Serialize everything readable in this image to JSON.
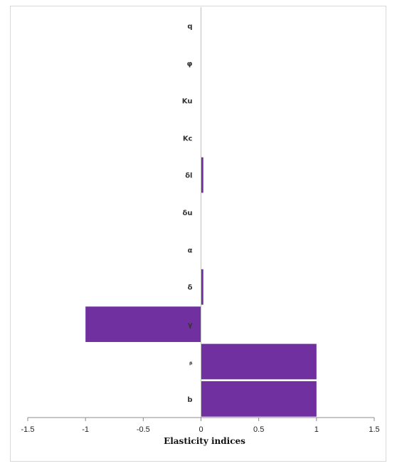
{
  "chart_data": {
    "type": "bar",
    "orientation": "horizontal",
    "categories": [
      "q",
      "φ",
      "Ku",
      "Kc",
      "δl",
      "δu",
      "α",
      "δ",
      "γ",
      "ᵦ",
      "b"
    ],
    "values": [
      0,
      0,
      0,
      0,
      0.02,
      0,
      0,
      0.02,
      -1,
      1,
      1
    ],
    "xlim": [
      -1.5,
      1.5
    ],
    "xticks": [
      -1.5,
      -1,
      -0.5,
      0,
      0.5,
      1,
      1.5
    ],
    "xlabel": "Elasticity indices",
    "ylabel": "",
    "title": "",
    "grid": false,
    "legend": "none",
    "bar_color": "#7030a0"
  }
}
